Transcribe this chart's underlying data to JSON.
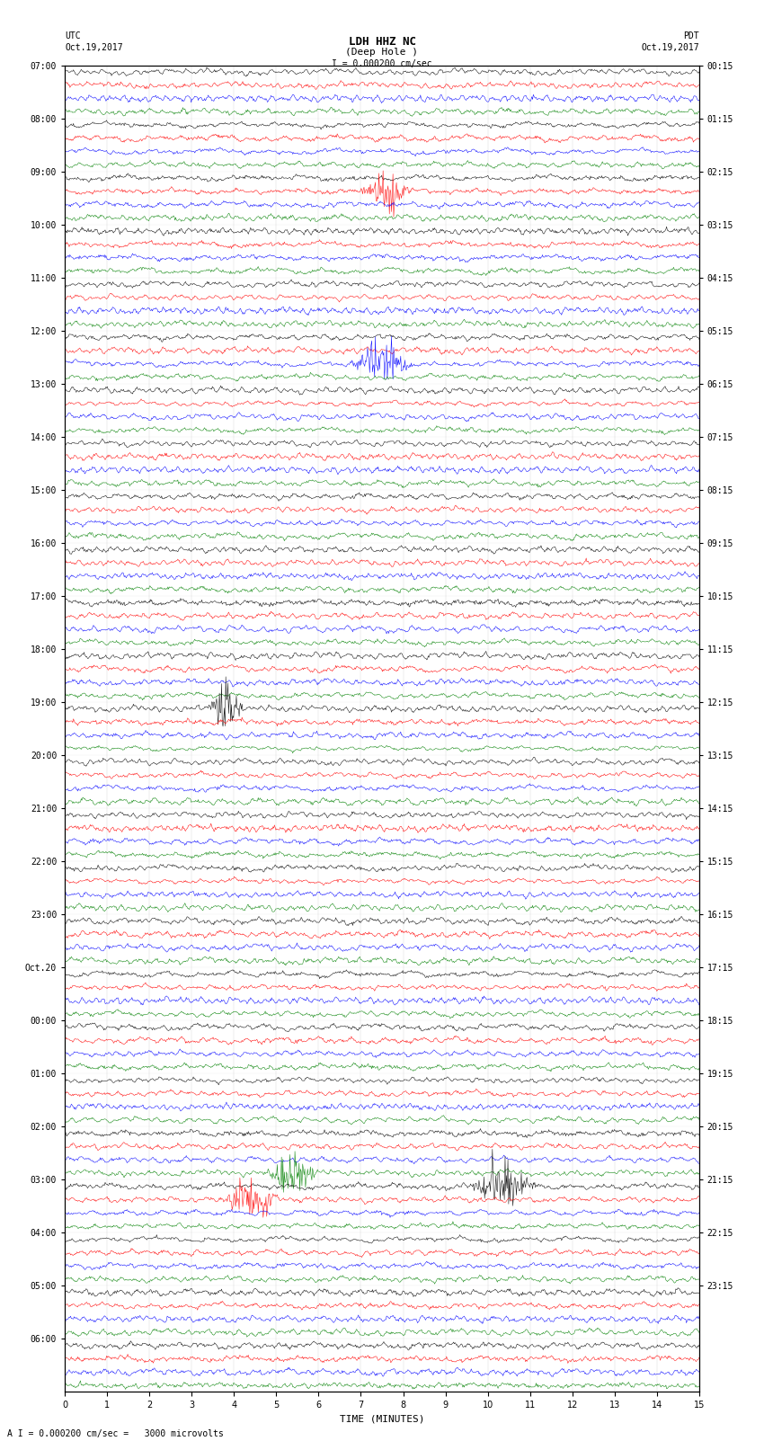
{
  "title_line1": "LDH HHZ NC",
  "title_line2": "(Deep Hole )",
  "scale_text": "I = 0.000200 cm/sec",
  "bottom_text": "A I = 0.000200 cm/sec =   3000 microvolts",
  "utc_label": "UTC",
  "utc_date": "Oct.19,2017",
  "pdt_label": "PDT",
  "pdt_date": "Oct.19,2017",
  "xlabel": "TIME (MINUTES)",
  "xmin": 0,
  "xmax": 15,
  "xticks": [
    0,
    1,
    2,
    3,
    4,
    5,
    6,
    7,
    8,
    9,
    10,
    11,
    12,
    13,
    14,
    15
  ],
  "left_labels": [
    "07:00",
    "08:00",
    "09:00",
    "10:00",
    "11:00",
    "12:00",
    "13:00",
    "14:00",
    "15:00",
    "16:00",
    "17:00",
    "18:00",
    "19:00",
    "20:00",
    "21:00",
    "22:00",
    "23:00",
    "Oct.20",
    "00:00",
    "01:00",
    "02:00",
    "03:00",
    "04:00",
    "05:00",
    "06:00"
  ],
  "right_labels": [
    "00:15",
    "01:15",
    "02:15",
    "03:15",
    "04:15",
    "05:15",
    "06:15",
    "07:15",
    "08:15",
    "09:15",
    "10:15",
    "11:15",
    "12:15",
    "13:15",
    "14:15",
    "15:15",
    "16:15",
    "17:15",
    "18:15",
    "19:15",
    "20:15",
    "21:15",
    "22:15",
    "23:15"
  ],
  "n_rows": 25,
  "traces_per_row": 4,
  "colors": [
    "black",
    "red",
    "blue",
    "green"
  ],
  "fig_width": 8.5,
  "fig_height": 16.13,
  "bg_color": "white",
  "trace_amplitude": 0.35,
  "noise_seed": 42,
  "dpi": 100,
  "n_points": 900,
  "grid_color": "#aaaaaa",
  "grid_alpha": 0.5
}
